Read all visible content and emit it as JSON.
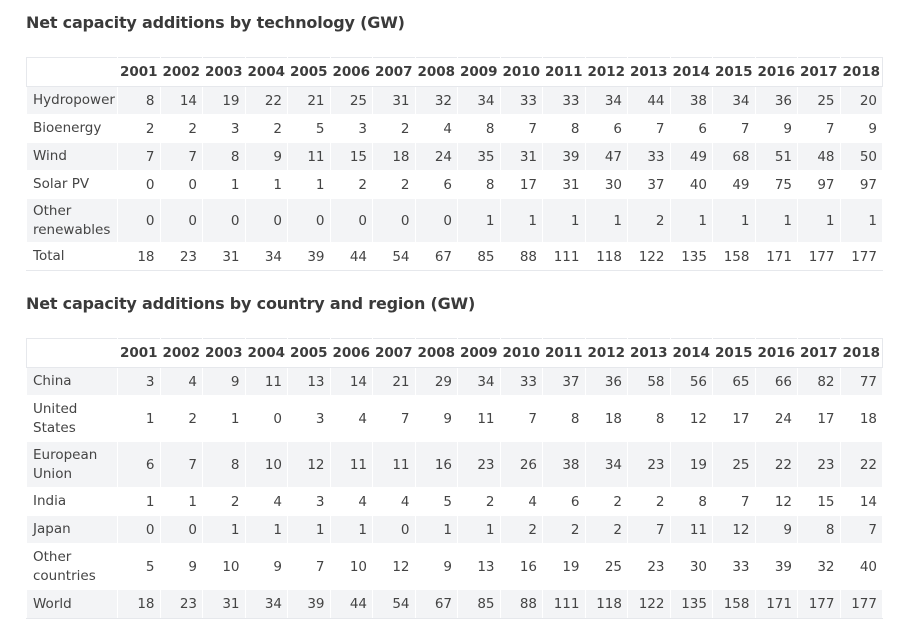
{
  "years": [
    "2001",
    "2002",
    "2003",
    "2004",
    "2005",
    "2006",
    "2007",
    "2008",
    "2009",
    "2010",
    "2011",
    "2012",
    "2013",
    "2014",
    "2015",
    "2016",
    "2017",
    "2018"
  ],
  "technology": {
    "title": "Net capacity additions by technology (GW)",
    "rows": [
      {
        "label": "Hydropower",
        "values": [
          "8",
          "14",
          "19",
          "22",
          "21",
          "25",
          "31",
          "32",
          "34",
          "33",
          "33",
          "34",
          "44",
          "38",
          "34",
          "36",
          "25",
          "20"
        ]
      },
      {
        "label": "Bioenergy",
        "values": [
          "2",
          "2",
          "3",
          "2",
          "5",
          "3",
          "2",
          "4",
          "8",
          "7",
          "8",
          "6",
          "7",
          "6",
          "7",
          "9",
          "7",
          "9"
        ]
      },
      {
        "label": "Wind",
        "values": [
          "7",
          "7",
          "8",
          "9",
          "11",
          "15",
          "18",
          "24",
          "35",
          "31",
          "39",
          "47",
          "33",
          "49",
          "68",
          "51",
          "48",
          "50"
        ]
      },
      {
        "label": "Solar PV",
        "values": [
          "0",
          "0",
          "1",
          "1",
          "1",
          "2",
          "2",
          "6",
          "8",
          "17",
          "31",
          "30",
          "37",
          "40",
          "49",
          "75",
          "97",
          "97"
        ]
      },
      {
        "label": "Other renewables",
        "values": [
          "0",
          "0",
          "0",
          "0",
          "0",
          "0",
          "0",
          "0",
          "1",
          "1",
          "1",
          "1",
          "2",
          "1",
          "1",
          "1",
          "1",
          "1"
        ]
      },
      {
        "label": "Total",
        "values": [
          "18",
          "23",
          "31",
          "34",
          "39",
          "44",
          "54",
          "67",
          "85",
          "88",
          "111",
          "118",
          "122",
          "135",
          "158",
          "171",
          "177",
          "177"
        ]
      }
    ]
  },
  "region": {
    "title": "Net capacity additions by country and region (GW)",
    "rows": [
      {
        "label": "China",
        "values": [
          "3",
          "4",
          "9",
          "11",
          "13",
          "14",
          "21",
          "29",
          "34",
          "33",
          "37",
          "36",
          "58",
          "56",
          "65",
          "66",
          "82",
          "77"
        ]
      },
      {
        "label": "United States",
        "values": [
          "1",
          "2",
          "1",
          "0",
          "3",
          "4",
          "7",
          "9",
          "11",
          "7",
          "8",
          "18",
          "8",
          "12",
          "17",
          "24",
          "17",
          "18"
        ]
      },
      {
        "label": "European Union",
        "values": [
          "6",
          "7",
          "8",
          "10",
          "12",
          "11",
          "11",
          "16",
          "23",
          "26",
          "38",
          "34",
          "23",
          "19",
          "25",
          "22",
          "23",
          "22"
        ]
      },
      {
        "label": "India",
        "values": [
          "1",
          "1",
          "2",
          "4",
          "3",
          "4",
          "4",
          "5",
          "2",
          "4",
          "6",
          "2",
          "2",
          "8",
          "7",
          "12",
          "15",
          "14"
        ]
      },
      {
        "label": "Japan",
        "values": [
          "0",
          "0",
          "1",
          "1",
          "1",
          "1",
          "0",
          "1",
          "1",
          "2",
          "2",
          "2",
          "7",
          "11",
          "12",
          "9",
          "8",
          "7"
        ]
      },
      {
        "label": "Other countries",
        "values": [
          "5",
          "9",
          "10",
          "9",
          "7",
          "10",
          "12",
          "9",
          "13",
          "16",
          "19",
          "25",
          "23",
          "30",
          "33",
          "39",
          "32",
          "40"
        ]
      },
      {
        "label": "World",
        "values": [
          "18",
          "23",
          "31",
          "34",
          "39",
          "44",
          "54",
          "67",
          "85",
          "88",
          "111",
          "118",
          "122",
          "135",
          "158",
          "171",
          "177",
          "177"
        ]
      }
    ]
  }
}
